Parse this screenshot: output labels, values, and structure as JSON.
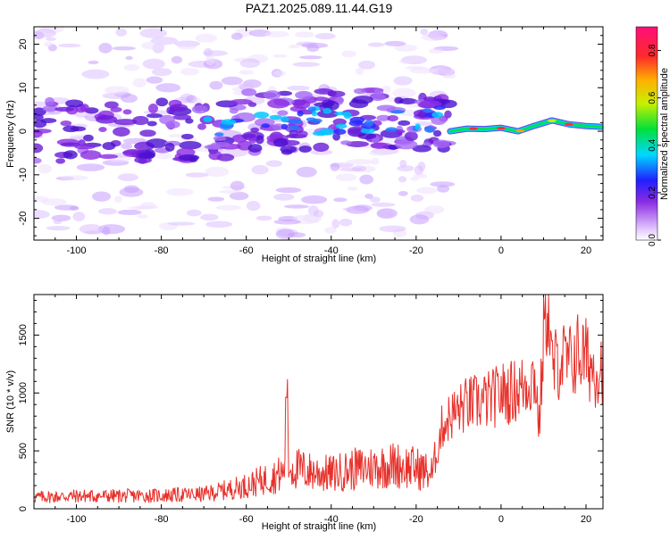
{
  "title": "PAZ1.2025.089.11.44.G19",
  "chart_data": [
    {
      "type": "heatmap",
      "xlabel": "Height of straight line (km)",
      "ylabel": "Frequency (Hz)",
      "xlim": [
        -110,
        24
      ],
      "ylim": [
        -25,
        24
      ],
      "xticks": [
        -100,
        -80,
        -60,
        -40,
        -20,
        0,
        20
      ],
      "yticks": [
        -20,
        -10,
        0,
        10,
        20
      ],
      "colorbar": {
        "label": "Normalized spectral amplitude",
        "range": [
          0,
          0.9
        ],
        "ticks": [
          0.0,
          0.2,
          0.4,
          0.6,
          0.8
        ],
        "colormap": "rainbow (white→purple→blue→cyan→green→yellow→orange→red→magenta)"
      },
      "grid": false
    },
    {
      "type": "line",
      "xlabel": "Height of straight line (km)",
      "ylabel": "SNR (10 * v/v)",
      "xlim": [
        -110,
        24
      ],
      "ylim": [
        0,
        1850
      ],
      "xticks": [
        -100,
        -80,
        -60,
        -40,
        -20,
        0,
        20
      ],
      "yticks": [
        0,
        500,
        1000,
        1500
      ],
      "color": "#e8302a",
      "grid": false,
      "series": [
        {
          "x": [
            -110,
            -100,
            -90,
            -80,
            -70,
            -65,
            -60,
            -55,
            -51,
            -50.5,
            -50,
            -45,
            -40,
            -35,
            -30,
            -25,
            -20,
            -16,
            -14,
            -12,
            -10,
            -8,
            -5,
            -2,
            0,
            2,
            5,
            8,
            9,
            10,
            11,
            12,
            14,
            16,
            18,
            20,
            22,
            24
          ],
          "y": [
            100,
            110,
            110,
            115,
            125,
            160,
            200,
            260,
            310,
            1260,
            360,
            320,
            300,
            340,
            360,
            380,
            350,
            300,
            700,
            800,
            850,
            900,
            920,
            950,
            1000,
            1000,
            1050,
            1150,
            700,
            1500,
            1850,
            1200,
            1300,
            1250,
            1350,
            1300,
            1200,
            1250
          ]
        }
      ]
    }
  ]
}
